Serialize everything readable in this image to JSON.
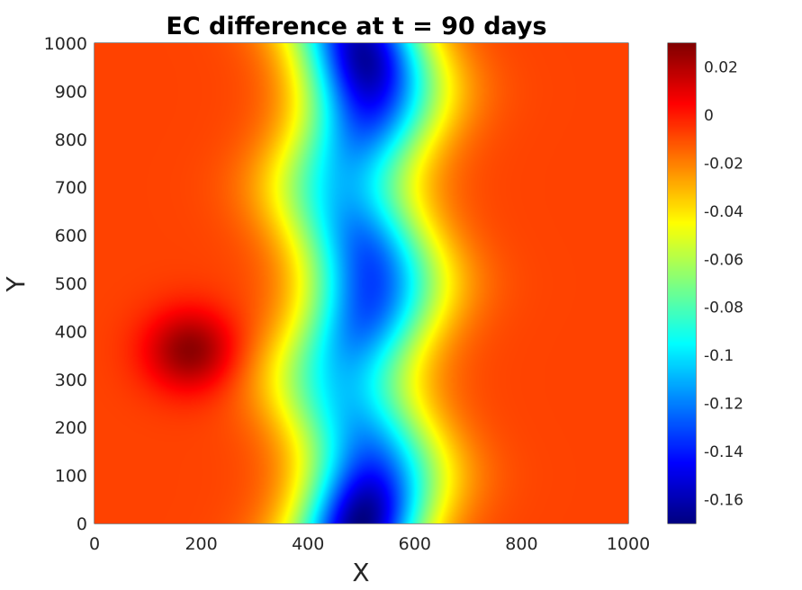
{
  "chart_data": {
    "type": "heatmap",
    "title": "EC difference at t = 90 days",
    "xlabel": "X",
    "ylabel": "Y",
    "xlim": [
      0,
      1000
    ],
    "ylim": [
      0,
      1000
    ],
    "x_ticks": [
      "0",
      "200",
      "400",
      "600",
      "800",
      "1000"
    ],
    "y_ticks": [
      "0",
      "100",
      "200",
      "300",
      "400",
      "500",
      "600",
      "700",
      "800",
      "900",
      "1000"
    ],
    "colormap": "jet",
    "colorbar": {
      "min": -0.17,
      "max": 0.03,
      "ticks": [
        "0.02",
        "0",
        "-0.02",
        "-0.04",
        "-0.06",
        "-0.08",
        "-0.1",
        "-0.12",
        "-0.14",
        "-0.16"
      ]
    },
    "field": {
      "background": -0.008,
      "features": [
        {
          "kind": "vertical-trough",
          "x_center": 500,
          "base": -0.1,
          "waviness_x": 30,
          "waviness_period_y": 400
        },
        {
          "kind": "minimum",
          "x": 500,
          "y": 0,
          "value": -0.17
        },
        {
          "kind": "minimum",
          "x": 500,
          "y": 500,
          "value": -0.135
        },
        {
          "kind": "minimum",
          "x": 500,
          "y": 960,
          "value": -0.165
        },
        {
          "kind": "maximum",
          "x": 180,
          "y": 360,
          "value": 0.028
        }
      ]
    }
  }
}
